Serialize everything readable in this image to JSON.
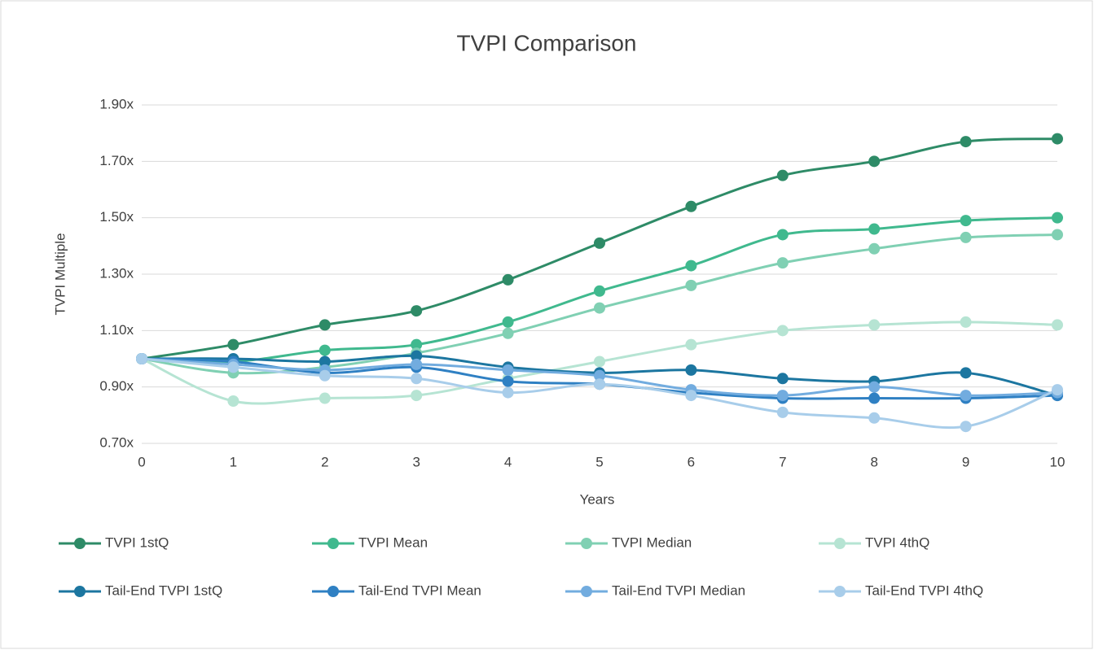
{
  "chart_data": {
    "type": "line",
    "title": "TVPI Comparison",
    "xlabel": "Years",
    "ylabel": "TVPI Multiple",
    "x": [
      0,
      1,
      2,
      3,
      4,
      5,
      6,
      7,
      8,
      9,
      10
    ],
    "xlim": [
      0,
      10
    ],
    "xticks": [
      0,
      1,
      2,
      3,
      4,
      5,
      6,
      7,
      8,
      9,
      10
    ],
    "ylim": [
      0.7,
      1.9
    ],
    "yticks": [
      {
        "value": 0.7,
        "label": "0.70x"
      },
      {
        "value": 0.9,
        "label": "0.90x"
      },
      {
        "value": 1.1,
        "label": "1.10x"
      },
      {
        "value": 1.3,
        "label": "1.30x"
      },
      {
        "value": 1.5,
        "label": "1.50x"
      },
      {
        "value": 1.7,
        "label": "1.70x"
      },
      {
        "value": 1.9,
        "label": "1.90x"
      }
    ],
    "grid": true,
    "legend": "bottom",
    "series": [
      {
        "name": "TVPI 1stQ",
        "color": "#2e8b67",
        "values": [
          1.0,
          1.05,
          1.12,
          1.17,
          1.28,
          1.41,
          1.54,
          1.65,
          1.7,
          1.77,
          1.78
        ]
      },
      {
        "name": "TVPI Mean",
        "color": "#40b98e",
        "values": [
          1.0,
          0.99,
          1.03,
          1.05,
          1.13,
          1.24,
          1.33,
          1.44,
          1.46,
          1.49,
          1.5
        ]
      },
      {
        "name": "TVPI Median",
        "color": "#80d0b3",
        "values": [
          1.0,
          0.95,
          0.97,
          1.02,
          1.09,
          1.18,
          1.26,
          1.34,
          1.39,
          1.43,
          1.44
        ]
      },
      {
        "name": "TVPI 4thQ",
        "color": "#b6e4d3",
        "values": [
          1.0,
          0.85,
          0.86,
          0.87,
          0.93,
          0.99,
          1.05,
          1.1,
          1.12,
          1.13,
          1.12
        ]
      },
      {
        "name": "Tail-End TVPI 1stQ",
        "color": "#1c76a0",
        "values": [
          1.0,
          1.0,
          0.99,
          1.01,
          0.97,
          0.95,
          0.96,
          0.93,
          0.92,
          0.95,
          0.87
        ]
      },
      {
        "name": "Tail-End TVPI Mean",
        "color": "#2f80c3",
        "values": [
          1.0,
          0.99,
          0.95,
          0.97,
          0.92,
          0.91,
          0.88,
          0.86,
          0.86,
          0.86,
          0.87
        ]
      },
      {
        "name": "Tail-End TVPI Median",
        "color": "#72acdf",
        "values": [
          1.0,
          0.98,
          0.96,
          0.98,
          0.96,
          0.94,
          0.89,
          0.87,
          0.9,
          0.87,
          0.88
        ]
      },
      {
        "name": "Tail-End TVPI 4thQ",
        "color": "#a8cdea",
        "values": [
          1.0,
          0.97,
          0.94,
          0.93,
          0.88,
          0.91,
          0.87,
          0.81,
          0.79,
          0.76,
          0.89
        ]
      }
    ]
  }
}
